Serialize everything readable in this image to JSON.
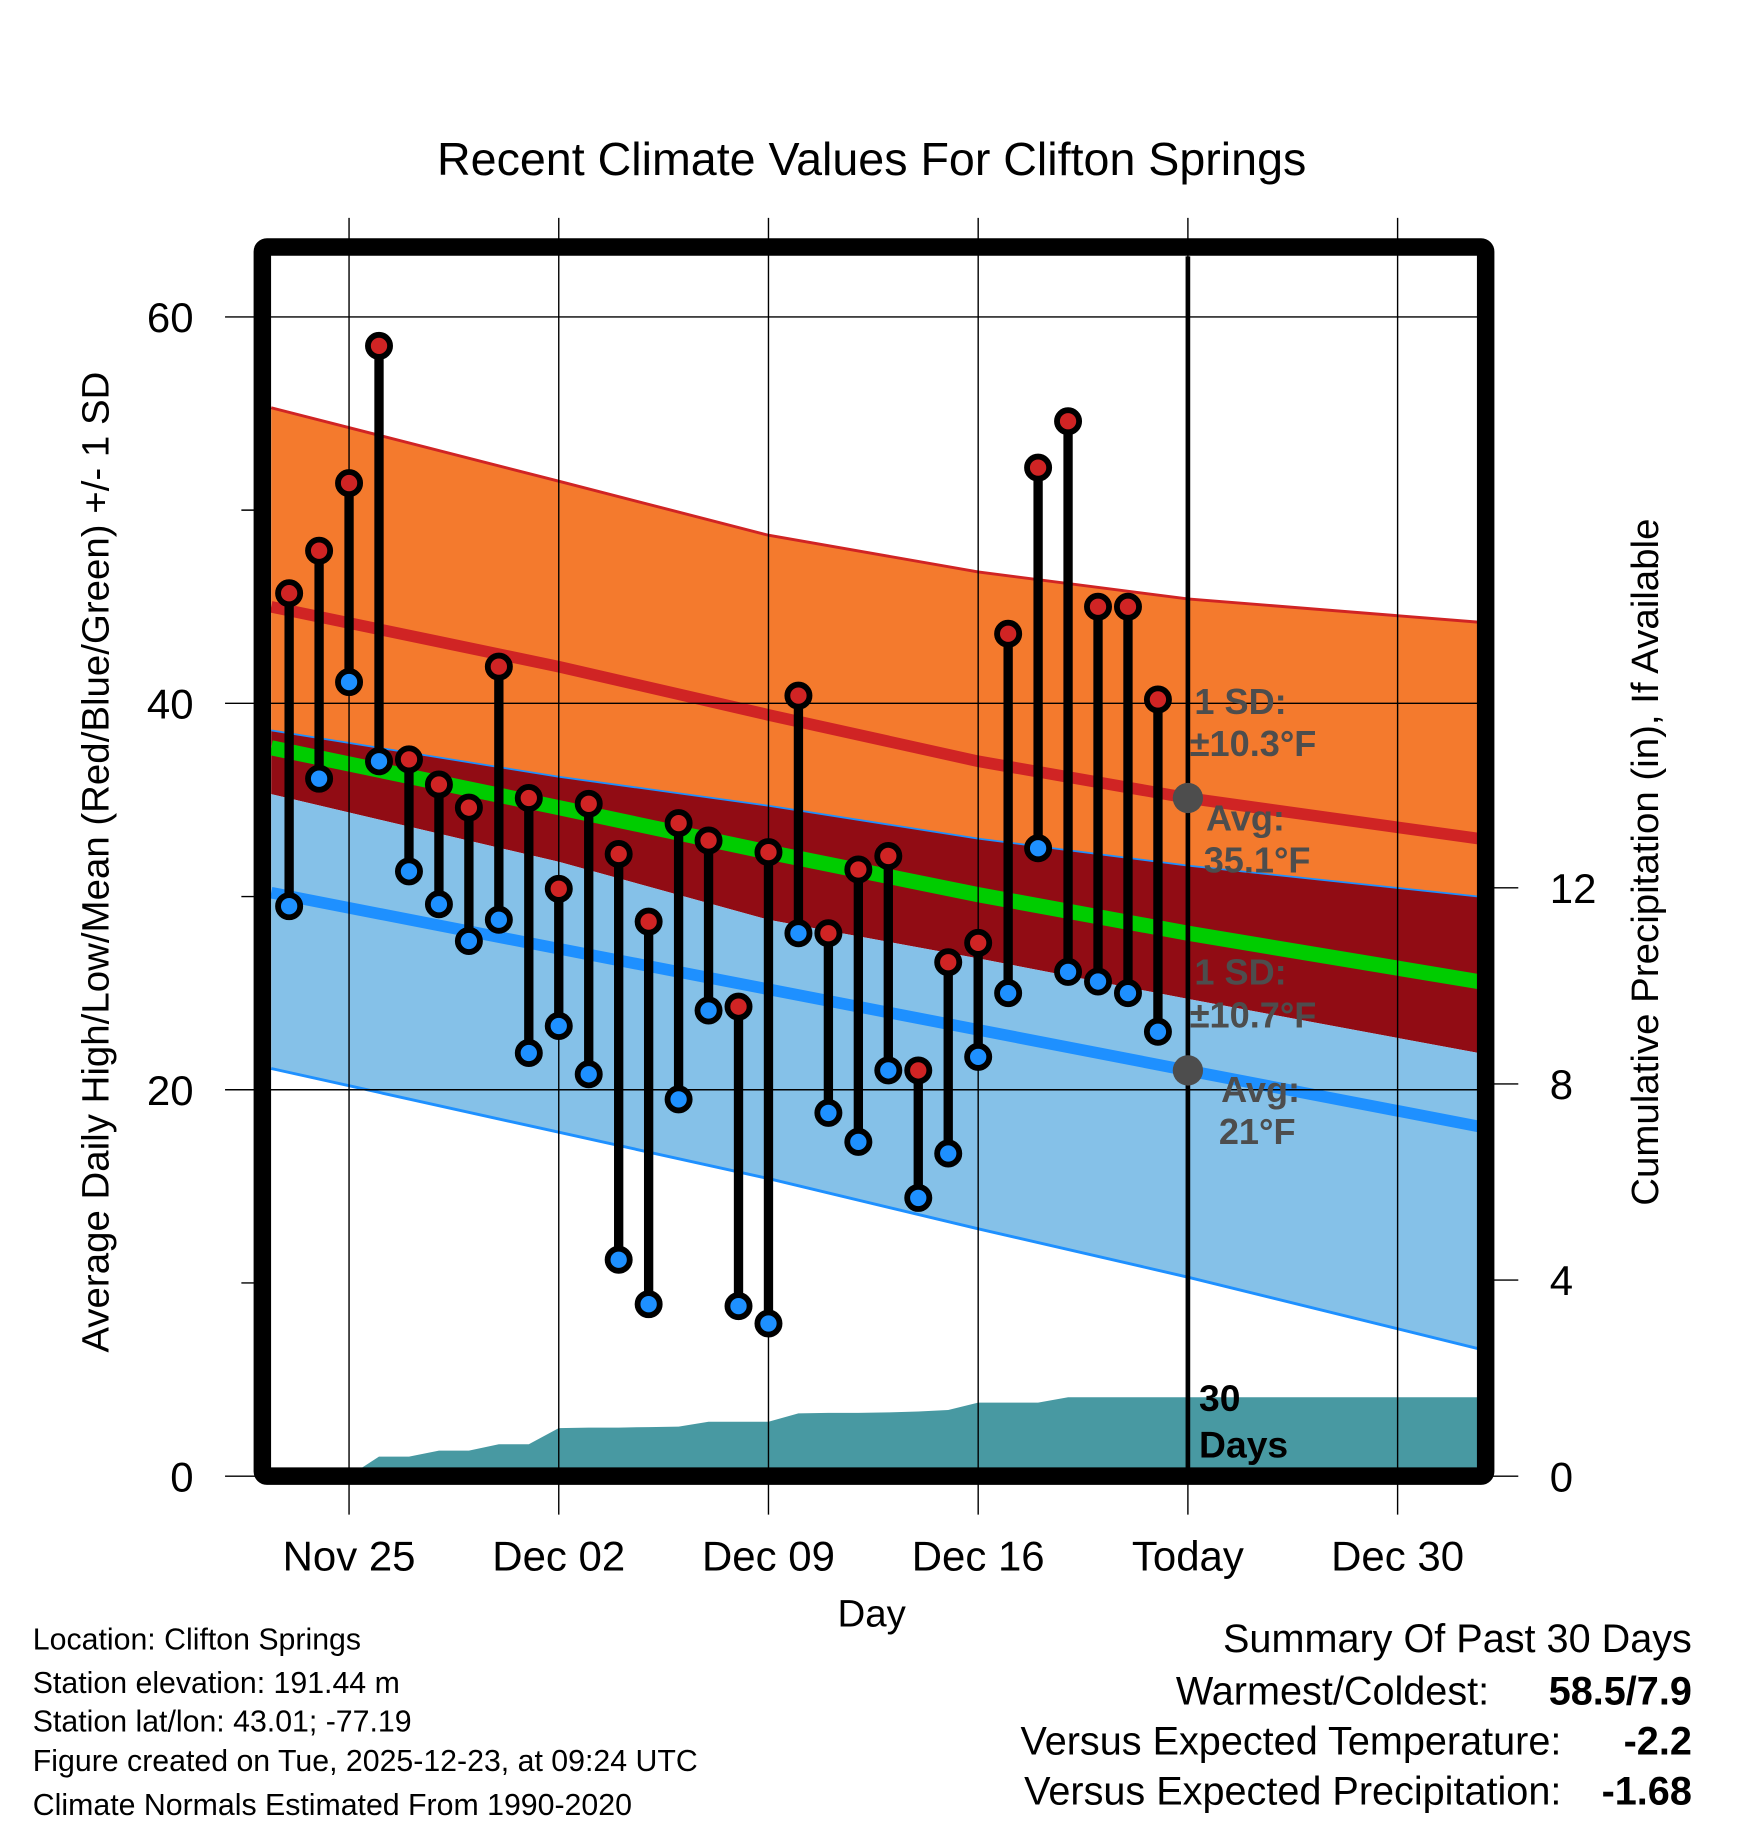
{
  "chart_data": {
    "type": "line",
    "title": "Recent Climate Values For Clifton Springs",
    "xlabel": "Day",
    "ylabel": "Average Daily High/Low/Mean (Red/Blue/Green) +/- 1 SD",
    "ylabel_right": "Cumulative Precipitation (in), If Available",
    "x_unit": "days since Nov 23",
    "xlim": [
      -0.6,
      39.7
    ],
    "ylim": [
      0,
      64
    ],
    "ylim_right": [
      0,
      15.2
    ],
    "grid": true,
    "x_ticks": [
      {
        "x": 2,
        "label": "Nov 25"
      },
      {
        "x": 9,
        "label": "Dec 02"
      },
      {
        "x": 16,
        "label": "Dec 09"
      },
      {
        "x": 23,
        "label": "Dec 16"
      },
      {
        "x": 30,
        "label": "Today"
      },
      {
        "x": 37,
        "label": "Dec 30"
      }
    ],
    "y_ticks": [
      {
        "v": 0,
        "label": "0"
      },
      {
        "v": 20,
        "label": "20"
      },
      {
        "v": 40,
        "label": "40"
      },
      {
        "v": 60,
        "label": "60"
      }
    ],
    "y_minor_ticks": [
      10,
      30,
      50
    ],
    "y_right_ticks": [
      {
        "v": 0,
        "label": "0"
      },
      {
        "v": 4,
        "label": "4"
      },
      {
        "v": 8,
        "label": "8"
      },
      {
        "v": 12,
        "label": "12"
      }
    ],
    "today_x": 30,
    "dates": [
      "Nov 23",
      "Nov 24",
      "Nov 25",
      "Nov 26",
      "Nov 27",
      "Nov 28",
      "Nov 29",
      "Nov 30",
      "Dec 01",
      "Dec 02",
      "Dec 03",
      "Dec 04",
      "Dec 05",
      "Dec 06",
      "Dec 07",
      "Dec 08",
      "Dec 09",
      "Dec 10",
      "Dec 11",
      "Dec 12",
      "Dec 13",
      "Dec 14",
      "Dec 15",
      "Dec 16",
      "Dec 17",
      "Dec 18",
      "Dec 19",
      "Dec 20",
      "Dec 21",
      "Dec 22"
    ],
    "series": [
      {
        "name": "Daily High",
        "color": "#d02424",
        "values": [
          45.7,
          47.9,
          51.4,
          58.5,
          37.1,
          35.8,
          34.6,
          41.9,
          35.1,
          30.4,
          34.8,
          32.2,
          28.7,
          33.8,
          32.9,
          24.3,
          32.3,
          40.4,
          28.1,
          31.4,
          32.1,
          21.0,
          26.6,
          27.6,
          43.6,
          52.2,
          54.6,
          45.0,
          45.0,
          40.2
        ]
      },
      {
        "name": "Daily Low",
        "color": "#1e90ff",
        "values": [
          29.5,
          36.1,
          41.1,
          37.0,
          31.3,
          29.6,
          27.7,
          28.8,
          21.9,
          23.3,
          20.8,
          11.2,
          8.9,
          19.5,
          24.1,
          8.8,
          7.9,
          28.1,
          18.8,
          17.3,
          21.0,
          14.4,
          16.7,
          21.7,
          25.0,
          32.5,
          26.1,
          25.6,
          25.0,
          23.0
        ]
      }
    ],
    "normals": {
      "x": [
        -0.6,
        9,
        16,
        23,
        30,
        39.7
      ],
      "high_plus_sd": [
        55.3,
        51.5,
        48.7,
        46.8,
        45.4,
        44.2
      ],
      "high_mean": [
        45.0,
        41.9,
        39.4,
        37.0,
        35.1,
        33.0
      ],
      "high_minus_sd": [
        38.6,
        36.2,
        34.7,
        33.0,
        31.6,
        30.0
      ],
      "mean": [
        37.7,
        34.6,
        32.3,
        30.1,
        28.1,
        25.6
      ],
      "low_plus_sd": [
        35.3,
        31.8,
        28.8,
        26.8,
        24.7,
        21.9
      ],
      "low_mean": [
        30.2,
        27.3,
        25.2,
        23.1,
        21.0,
        18.1
      ],
      "low_minus_sd": [
        21.1,
        17.8,
        15.4,
        12.8,
        10.3,
        6.6
      ]
    },
    "precip_cumulative": {
      "x": [
        -0.6,
        0,
        1,
        2,
        3,
        4,
        5,
        6,
        7,
        8,
        9,
        10,
        11,
        12,
        13,
        14,
        15,
        16,
        17,
        18,
        19,
        20,
        21,
        22,
        23,
        24,
        25,
        26,
        27,
        28,
        29,
        39.7
      ],
      "values": [
        0,
        0,
        0,
        0,
        0.4,
        0.4,
        0.52,
        0.52,
        0.65,
        0.65,
        0.98,
        0.99,
        0.99,
        1.0,
        1.01,
        1.11,
        1.11,
        1.11,
        1.28,
        1.29,
        1.29,
        1.3,
        1.32,
        1.35,
        1.5,
        1.5,
        1.5,
        1.61,
        1.61,
        1.61,
        1.61,
        1.61
      ]
    },
    "annotations": {
      "high_sd_label": "1 SD:",
      "high_sd_value": "±10.3°F",
      "high_avg_label": "Avg:",
      "high_avg_value": "35.1°F",
      "low_sd_label": "1 SD:",
      "low_sd_value": "±10.7°F",
      "low_avg_label": "Avg:",
      "low_avg_value": "21°F",
      "period_number": "30",
      "period_unit": "Days"
    },
    "colors": {
      "high_band": "#f47a2d",
      "mid_band": "#910c14",
      "low_band": "#85c1e8",
      "high_line": "#d02424",
      "mean_line": "#00cc00",
      "low_line": "#1e90ff",
      "precip": "#4899a2",
      "annotation": "#4d4d4d"
    }
  },
  "footer": {
    "location": "Location: Clifton Springs",
    "elevation": "Station elevation: 191.44 m",
    "latlon": "Station lat/lon: 43.01; -77.19",
    "created": "Figure created on Tue, 2025-12-23, at 09:24 UTC",
    "normals": "Climate Normals Estimated From 1990-2020"
  },
  "summary": {
    "title": "Summary Of Past 30 Days",
    "warmest_label": "Warmest/Coldest:",
    "warmest_value": "58.5/7.9",
    "temp_label": "Versus Expected Temperature:",
    "temp_value": "-2.2",
    "temp_color": "#1e90ff",
    "precip_label": "Versus Expected Precipitation:",
    "precip_value": "-1.68",
    "precip_color": "#a0522d"
  }
}
